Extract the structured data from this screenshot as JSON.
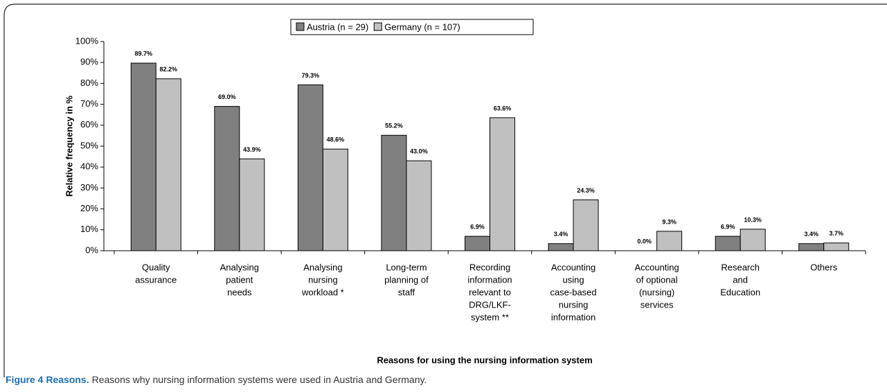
{
  "chart_data": {
    "type": "bar",
    "ylabel": "Relative frequency in %",
    "xlabel": "Reasons for using the nursing information system",
    "categories": [
      [
        "Quality",
        "assurance"
      ],
      [
        "Analysing",
        "patient",
        "needs"
      ],
      [
        "Analysing",
        "nursing",
        "workload *"
      ],
      [
        "Long-term",
        "planning of",
        "staff"
      ],
      [
        "Recording",
        "information",
        "relevant to",
        "DRG/LKF-",
        "system **"
      ],
      [
        "Accounting",
        "using",
        "case-based",
        "nursing",
        "information"
      ],
      [
        "Accounting",
        "of optional",
        "(nursing)",
        "services"
      ],
      [
        "Research",
        "and",
        "Education"
      ],
      [
        "Others"
      ]
    ],
    "series": [
      {
        "name": "Austria (n = 29)",
        "color": "#808080",
        "values": [
          89.7,
          69.0,
          79.3,
          55.2,
          6.9,
          3.4,
          0.0,
          6.9,
          3.4
        ],
        "value_labels": [
          "89.7%",
          "69.0%",
          "79.3%",
          "55.2%",
          "6.9%",
          "3.4%",
          "0.0%",
          "6.9%",
          "3.4%"
        ]
      },
      {
        "name": "Germany (n = 107)",
        "color": "#c0c0c0",
        "values": [
          82.2,
          43.9,
          48.6,
          43.0,
          63.6,
          24.3,
          9.3,
          10.3,
          3.7
        ],
        "value_labels": [
          "82.2%",
          "43.9%",
          "48.6%",
          "43.0%",
          "63.6%",
          "24.3%",
          "9.3%",
          "10.3%",
          "3.7%"
        ]
      }
    ],
    "ylim": [
      0,
      100
    ],
    "yticks": [
      {
        "value": 0,
        "label": "0%"
      },
      {
        "value": 10,
        "label": "10%"
      },
      {
        "value": 20,
        "label": "20%"
      },
      {
        "value": 30,
        "label": "30%"
      },
      {
        "value": 40,
        "label": "40%"
      },
      {
        "value": 50,
        "label": "50%"
      },
      {
        "value": 60,
        "label": "60%"
      },
      {
        "value": 70,
        "label": "70%"
      },
      {
        "value": 80,
        "label": "80%"
      },
      {
        "value": 90,
        "label": "90%"
      },
      {
        "value": 100,
        "label": "100%"
      }
    ],
    "legend": "top"
  },
  "caption": {
    "label": "Figure 4 Reasons.",
    "text": "Reasons why nursing information systems were used in Austria and Germany."
  }
}
